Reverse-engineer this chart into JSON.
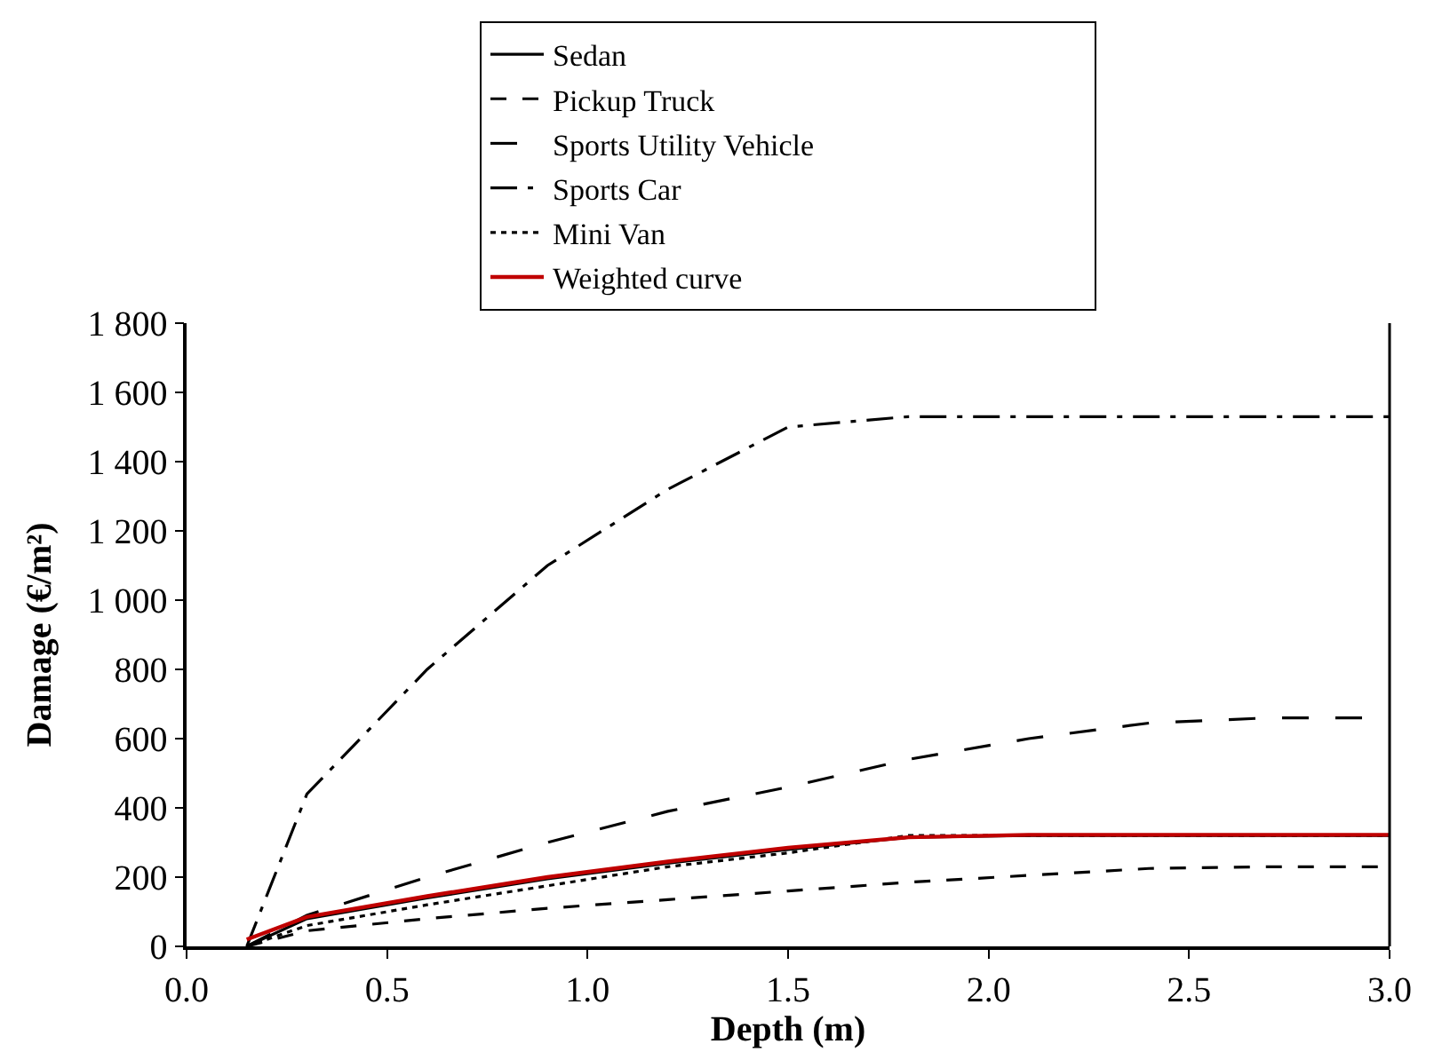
{
  "chart_data": {
    "type": "line",
    "xlabel": "Depth (m)",
    "ylabel": "Damage (€/m²)",
    "xlim": [
      0,
      3
    ],
    "xticks": [
      {
        "value": 0,
        "label": "0.0"
      },
      0.5,
      {
        "value": 1,
        "label": "1.0"
      },
      1.5,
      {
        "value": 2,
        "label": "2.0"
      },
      2.5,
      {
        "value": 3,
        "label": "3.0"
      }
    ],
    "ylim": [
      0,
      1800
    ],
    "yticks": [
      0,
      200,
      400,
      600,
      800,
      {
        "value": 1000,
        "label": "1 000"
      },
      {
        "value": 1200,
        "label": "1 200"
      },
      {
        "value": 1400,
        "label": "1 400"
      },
      {
        "value": 1600,
        "label": "1 600"
      },
      {
        "value": 1800,
        "label": "1 800"
      }
    ],
    "grid": false,
    "legend": "top",
    "marker": "none",
    "series": [
      {
        "name": "Sedan",
        "color": "#000000",
        "line_style": "solid",
        "x": [
          0.15,
          0.3,
          0.6,
          0.9,
          1.2,
          1.5,
          1.8,
          2.1,
          3.0
        ],
        "values": [
          0,
          80,
          140,
          195,
          240,
          280,
          315,
          320,
          320
        ]
      },
      {
        "name": "Pickup Truck",
        "color": "#000000",
        "line_style": "dashed",
        "x": [
          0.15,
          0.3,
          0.6,
          0.9,
          1.2,
          1.5,
          1.8,
          2.1,
          2.4,
          2.7,
          3.0
        ],
        "values": [
          0,
          45,
          80,
          110,
          135,
          160,
          185,
          205,
          225,
          230,
          230
        ]
      },
      {
        "name": "Sports Utility Vehicle",
        "color": "#000000",
        "line_style": "longdash",
        "x": [
          0.15,
          0.3,
          0.6,
          0.9,
          1.2,
          1.5,
          1.8,
          2.1,
          2.4,
          2.7,
          3.0
        ],
        "values": [
          0,
          90,
          200,
          300,
          390,
          460,
          540,
          600,
          645,
          660,
          660
        ]
      },
      {
        "name": "Sports Car",
        "color": "#000000",
        "line_style": "dashdot",
        "x": [
          0.15,
          0.3,
          0.6,
          0.9,
          1.2,
          1.5,
          1.8,
          3.0
        ],
        "values": [
          0,
          440,
          800,
          1100,
          1320,
          1500,
          1530,
          1530
        ]
      },
      {
        "name": "Mini Van",
        "color": "#000000",
        "line_style": "dotted",
        "x": [
          0.15,
          0.3,
          0.6,
          0.9,
          1.2,
          1.5,
          1.8,
          2.1,
          3.0
        ],
        "values": [
          0,
          60,
          120,
          175,
          230,
          270,
          320,
          320,
          320
        ]
      },
      {
        "name": "Weighted curve",
        "color": "#c00000",
        "line_style": "solid",
        "x": [
          0.15,
          0.3,
          0.6,
          0.9,
          1.2,
          1.5,
          1.8,
          2.1,
          3.0
        ],
        "values": [
          20,
          85,
          145,
          200,
          245,
          285,
          315,
          322,
          322
        ]
      }
    ]
  }
}
